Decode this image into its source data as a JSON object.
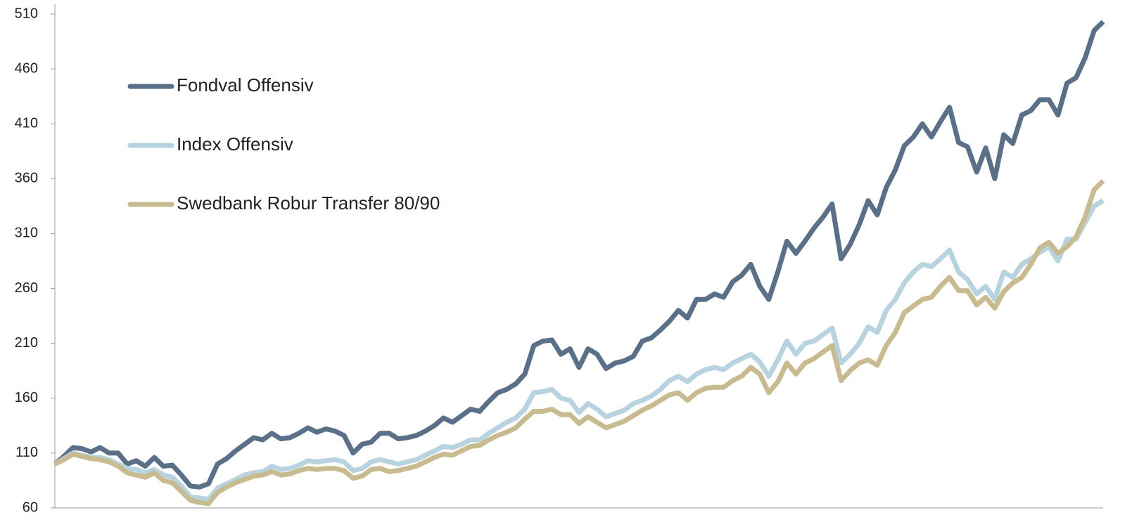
{
  "chart_data": {
    "type": "line",
    "ylim": [
      60,
      510
    ],
    "yticks": [
      60,
      110,
      160,
      210,
      260,
      310,
      360,
      410,
      460,
      510
    ],
    "legend": "upper left",
    "series": [
      {
        "name": "Fondval Offensiv",
        "color": "#5a7089",
        "values": [
          100,
          107,
          115,
          114,
          111,
          115,
          110,
          110,
          100,
          103,
          98,
          106,
          98,
          99,
          90,
          80,
          79,
          82,
          100,
          105,
          112,
          118,
          124,
          122,
          128,
          123,
          124,
          128,
          133,
          129,
          132,
          130,
          126,
          110,
          118,
          120,
          128,
          128,
          123,
          124,
          126,
          130,
          135,
          142,
          138,
          144,
          150,
          148,
          157,
          165,
          168,
          173,
          182,
          208,
          212,
          213,
          200,
          205,
          188,
          205,
          200,
          187,
          192,
          194,
          198,
          212,
          215,
          222,
          230,
          240,
          233,
          250,
          250,
          255,
          252,
          266,
          272,
          282,
          262,
          250,
          275,
          303,
          292,
          303,
          315,
          325,
          337,
          287,
          300,
          318,
          340,
          327,
          352,
          368,
          390,
          398,
          410,
          398,
          412,
          425,
          393,
          389,
          366,
          388,
          360,
          400,
          392,
          418,
          422,
          432,
          432,
          418,
          447,
          452,
          470,
          495,
          503
        ]
      },
      {
        "name": "Index Offensiv",
        "color": "#b8d3e0",
        "values": [
          100,
          105,
          110,
          108,
          106,
          106,
          104,
          100,
          96,
          95,
          92,
          95,
          90,
          88,
          80,
          70,
          69,
          68,
          78,
          82,
          86,
          90,
          92,
          93,
          98,
          95,
          96,
          99,
          103,
          102,
          103,
          104,
          102,
          94,
          96,
          102,
          104,
          102,
          100,
          102,
          104,
          108,
          112,
          116,
          115,
          118,
          122,
          122,
          128,
          133,
          138,
          142,
          150,
          165,
          166,
          168,
          160,
          158,
          147,
          155,
          150,
          143,
          146,
          149,
          155,
          158,
          162,
          168,
          176,
          180,
          175,
          182,
          186,
          188,
          186,
          192,
          196,
          200,
          193,
          180,
          195,
          212,
          200,
          210,
          212,
          218,
          224,
          192,
          200,
          210,
          225,
          220,
          240,
          250,
          265,
          275,
          282,
          280,
          287,
          295,
          275,
          268,
          255,
          262,
          250,
          275,
          270,
          282,
          287,
          293,
          298,
          285,
          305,
          305,
          320,
          335,
          340
        ]
      },
      {
        "name": "Swedbank Robur Transfer 80/90",
        "color": "#c8bb8f",
        "values": [
          100,
          104,
          109,
          107,
          105,
          104,
          102,
          98,
          92,
          90,
          88,
          92,
          85,
          83,
          75,
          67,
          65,
          64,
          74,
          79,
          83,
          86,
          89,
          90,
          93,
          90,
          91,
          94,
          96,
          95,
          96,
          96,
          94,
          87,
          89,
          95,
          96,
          93,
          94,
          96,
          98,
          102,
          106,
          109,
          108,
          112,
          116,
          117,
          122,
          126,
          129,
          133,
          141,
          148,
          148,
          150,
          145,
          145,
          137,
          143,
          138,
          133,
          136,
          139,
          144,
          149,
          153,
          158,
          163,
          165,
          158,
          165,
          169,
          170,
          170,
          176,
          180,
          188,
          182,
          165,
          175,
          192,
          182,
          192,
          196,
          202,
          208,
          176,
          185,
          192,
          195,
          190,
          208,
          220,
          238,
          244,
          250,
          252,
          262,
          270,
          258,
          258,
          245,
          252,
          242,
          257,
          265,
          270,
          282,
          297,
          302,
          292,
          298,
          307,
          325,
          350,
          358
        ]
      }
    ]
  }
}
